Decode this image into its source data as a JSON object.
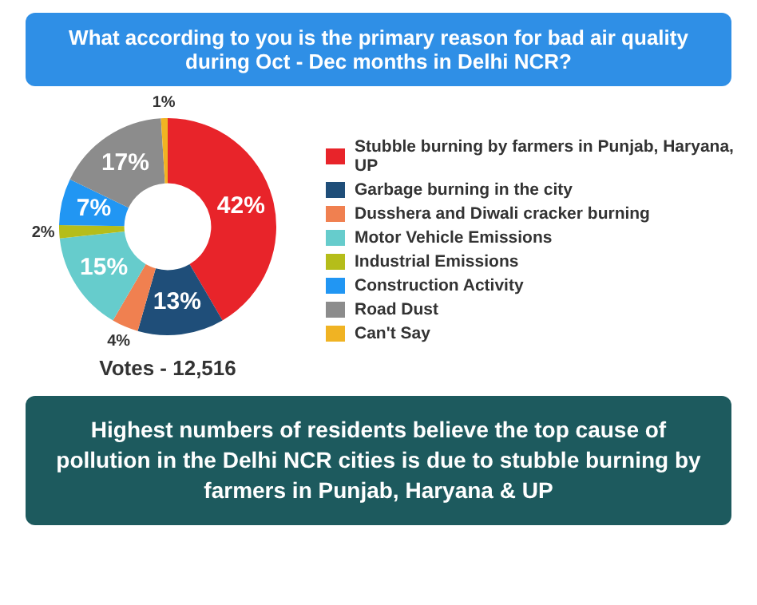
{
  "chart_data": {
    "type": "donut",
    "title": "What according to you is the primary reason for bad air quality during Oct - Dec months in Delhi NCR?",
    "categories": [
      "Stubble burning by farmers in Punjab, Haryana, UP",
      "Garbage burning in the city",
      "Dusshera and Diwali cracker burning",
      "Motor Vehicle Emissions",
      "Industrial Emissions",
      "Construction Activity",
      "Road Dust",
      "Can't Say"
    ],
    "values": [
      42,
      13,
      4,
      15,
      2,
      7,
      17,
      1
    ],
    "value_labels": [
      "42%",
      "13%",
      "4%",
      "15%",
      "2%",
      "7%",
      "17%",
      "1%"
    ],
    "colors": [
      "#e8242a",
      "#1f4e79",
      "#f08050",
      "#66cccc",
      "#b5bd1a",
      "#2196f3",
      "#8c8c8c",
      "#f0b323"
    ],
    "legend": "right",
    "annotations": [
      "Votes - 12,516",
      "Highest numbers of residents believe the top cause of pollution in the Delhi NCR cities is due to stubble burning by farmers in Punjab, Haryana & UP"
    ]
  }
}
